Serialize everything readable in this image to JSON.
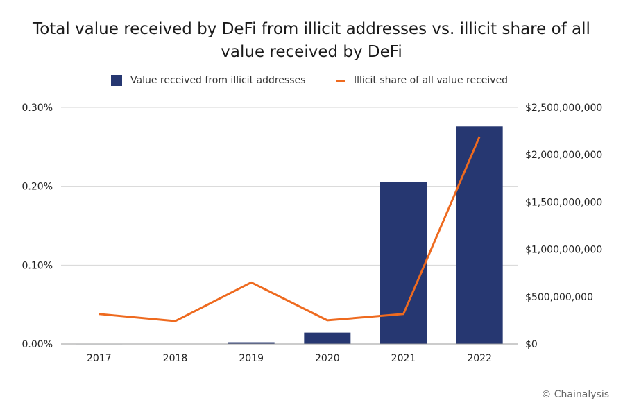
{
  "title": [
    "Total value received by DeFi from illicit addresses vs. illicit share of all",
    "value received by DeFi"
  ],
  "legend": {
    "bar_label": "Value received from illicit addresses",
    "line_label": "Illicit share of all value received"
  },
  "credit": "© Chainalysis",
  "colors": {
    "bar": "#263771",
    "line": "#ee6a1f",
    "grid": "#d6d6d6",
    "axis": "#9a9a9a"
  },
  "chart_data": {
    "type": "bar",
    "categories": [
      "2017",
      "2018",
      "2019",
      "2020",
      "2021",
      "2022"
    ],
    "series": [
      {
        "name": "Value received from illicit addresses",
        "type": "bar",
        "axis": "right",
        "values": [
          2000000,
          3000000,
          18000000,
          120000000,
          1710000000,
          2300000000
        ]
      },
      {
        "name": "Illicit share of all value received",
        "type": "line",
        "axis": "left",
        "unit": "%",
        "values": [
          0.038,
          0.029,
          0.078,
          0.03,
          0.038,
          0.263
        ]
      }
    ],
    "y_left": {
      "ticks": [
        "0.00%",
        "0.10%",
        "0.20%",
        "0.30%"
      ],
      "ylim": [
        0,
        0.3
      ]
    },
    "y_right": {
      "ticks": [
        "$0",
        "$500,000,000",
        "$1,000,000,000",
        "$1,500,000,000",
        "$2,000,000,000",
        "$2,500,000,000"
      ],
      "ylim": [
        0,
        2500000000
      ]
    },
    "grid": true,
    "legend_position": "top-center"
  }
}
